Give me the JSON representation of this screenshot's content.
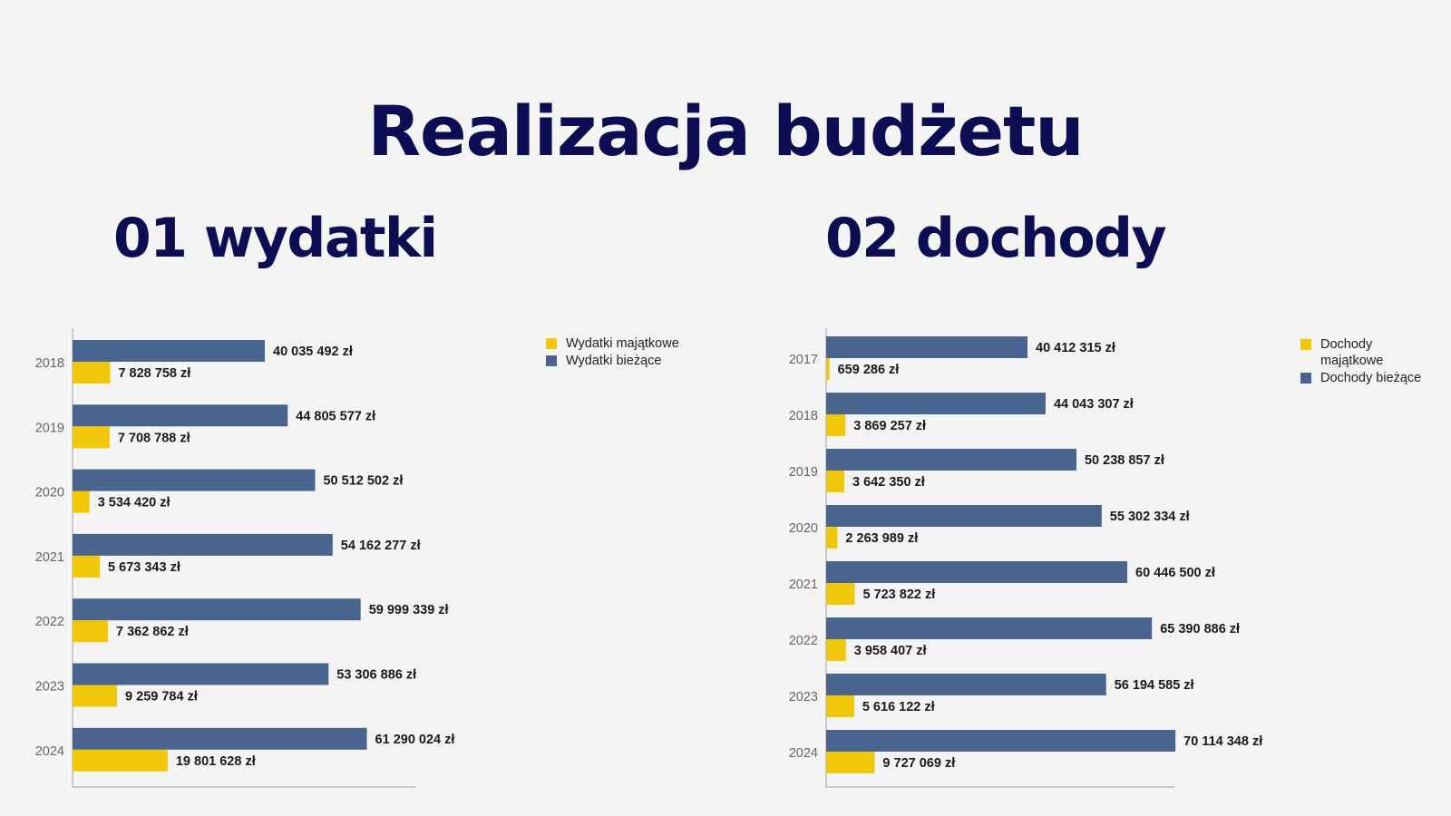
{
  "title": "Realizacja budżetu",
  "sections": [
    {
      "heading": "01 wydatki"
    },
    {
      "heading": "02 dochody"
    }
  ],
  "colors": {
    "title": "#0d0d54",
    "current": "#4a6490",
    "capital": "#f0c808",
    "axis": "#bbbbbb"
  },
  "chart_data": [
    {
      "type": "bar",
      "orientation": "horizontal",
      "categories": [
        "2018",
        "2019",
        "2020",
        "2021",
        "2022",
        "2023",
        "2024"
      ],
      "series": [
        {
          "name": "Wydatki bieżące",
          "color": "#4a6490",
          "values": [
            40035492,
            44805577,
            50512502,
            54162277,
            59999339,
            53306886,
            61290024
          ],
          "labels": [
            "40 035 492 zł",
            "44 805 577 zł",
            "50 512 502 zł",
            "54 162 277 zł",
            "59 999 339 zł",
            "53 306 886 zł",
            "61 290 024 zł"
          ]
        },
        {
          "name": "Wydatki majątkowe",
          "color": "#f0c808",
          "values": [
            7828758,
            7708788,
            3534420,
            5673343,
            7362862,
            9259784,
            19801628
          ],
          "labels": [
            "7 828 758 zł",
            "7 708 788 zł",
            "3 534 420 zł",
            "5 673 343 zł",
            "7 362 862 zł",
            "9 259 784 zł",
            "19 801 628 zł"
          ]
        }
      ],
      "legend": [
        "Wydatki majątkowe",
        "Wydatki bieżące"
      ],
      "legend_position": "top-right",
      "xlim": [
        0,
        80000000
      ]
    },
    {
      "type": "bar",
      "orientation": "horizontal",
      "categories": [
        "2017",
        "2018",
        "2019",
        "2020",
        "2021",
        "2022",
        "2023",
        "2024"
      ],
      "series": [
        {
          "name": "Dochody bieżące",
          "color": "#4a6490",
          "values": [
            40412315,
            44043307,
            50238857,
            55302334,
            60446500,
            65390886,
            56194585,
            70114348
          ],
          "labels": [
            "40 412 315 zł",
            "44 043 307 zł",
            "50 238 857 zł",
            "55 302 334 zł",
            "60 446 500 zł",
            "65 390 886 zł",
            "56 194 585 zł",
            "70 114 348 zł"
          ]
        },
        {
          "name": "Dochody majątkowe",
          "color": "#f0c808",
          "values": [
            659286,
            3869257,
            3642350,
            2263989,
            5723822,
            3958407,
            5616122,
            9727069
          ],
          "labels": [
            "659 286 zł",
            "3 869 257 zł",
            "3 642 350 zł",
            "2 263 989 zł",
            "5 723 822 zł",
            "3 958 407 zł",
            "5 616 122 zł",
            "9 727 069 zł"
          ]
        }
      ],
      "legend": [
        "Dochody majątkowe",
        "Dochody bieżące"
      ],
      "legend_position": "top-right",
      "xlim": [
        0,
        90000000
      ]
    }
  ]
}
